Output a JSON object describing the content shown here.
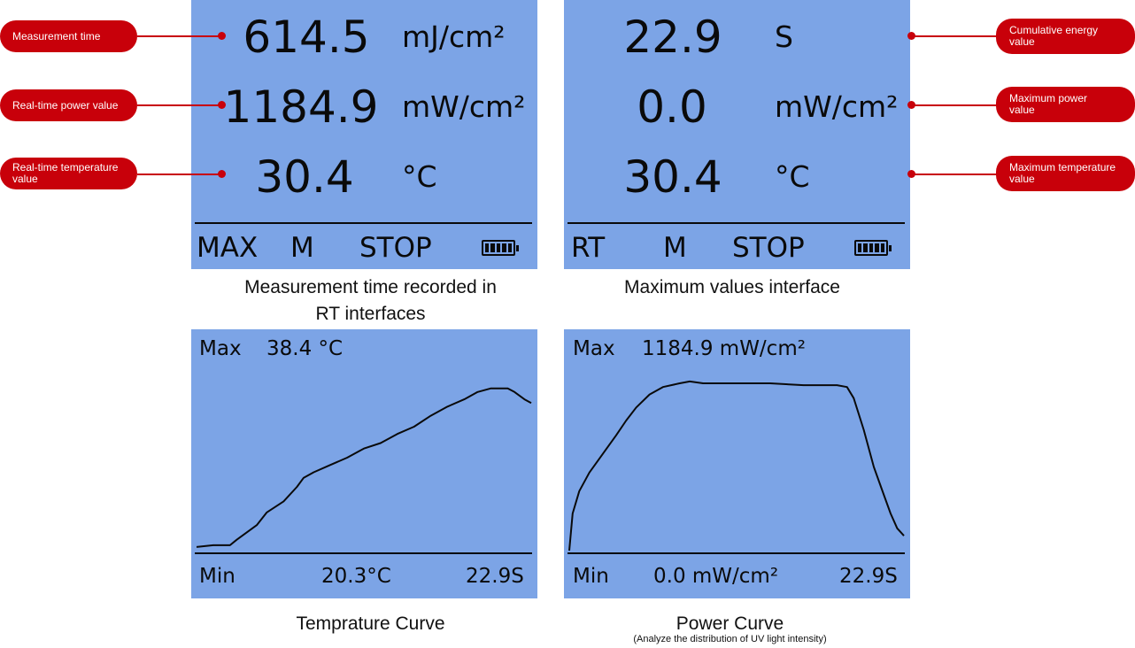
{
  "colors": {
    "screen": "#7ca4e6",
    "ink": "#0a0a0a",
    "callout": "#c8000a"
  },
  "rt_screen": {
    "rows": [
      {
        "value": "614.5",
        "unit": "mJ/cm²"
      },
      {
        "value": "1184.9",
        "unit": "mW/cm²"
      },
      {
        "value": "30.4",
        "unit": "°C"
      }
    ],
    "status": [
      "MAX",
      "M",
      "STOP"
    ],
    "battery_icon": "battery-full-icon",
    "caption_line1": "Measurement time recorded in",
    "caption_line2": "RT interfaces"
  },
  "max_screen": {
    "rows": [
      {
        "value": "22.9",
        "unit": "S"
      },
      {
        "value": "0.0",
        "unit": "mW/cm²"
      },
      {
        "value": "30.4",
        "unit": "°C"
      }
    ],
    "status": [
      "RT",
      "M",
      "STOP"
    ],
    "battery_icon": "battery-full-icon",
    "caption": "Maximum values interface"
  },
  "temp_screen": {
    "max_label": "Max",
    "max_value": "38.4 °C",
    "min_label": "Min",
    "min_value": "20.3°C",
    "time": "22.9S",
    "caption": "Temprature Curve",
    "curve": [
      [
        0,
        0.01
      ],
      [
        0.05,
        0.02
      ],
      [
        0.1,
        0.02
      ],
      [
        0.12,
        0.05
      ],
      [
        0.18,
        0.13
      ],
      [
        0.21,
        0.2
      ],
      [
        0.26,
        0.26
      ],
      [
        0.3,
        0.34
      ],
      [
        0.32,
        0.39
      ],
      [
        0.35,
        0.42
      ],
      [
        0.4,
        0.46
      ],
      [
        0.45,
        0.5
      ],
      [
        0.5,
        0.55
      ],
      [
        0.55,
        0.58
      ],
      [
        0.6,
        0.63
      ],
      [
        0.65,
        0.67
      ],
      [
        0.7,
        0.73
      ],
      [
        0.75,
        0.78
      ],
      [
        0.8,
        0.82
      ],
      [
        0.84,
        0.86
      ],
      [
        0.88,
        0.88
      ],
      [
        0.93,
        0.88
      ],
      [
        0.95,
        0.86
      ],
      [
        0.98,
        0.82
      ],
      [
        1.0,
        0.8
      ]
    ]
  },
  "power_screen": {
    "max_label": "Max",
    "max_value": "1184.9 mW/cm²",
    "min_label": "Min",
    "min_value": "0.0 mW/cm²",
    "time": "22.9S",
    "caption": "Power Curve",
    "subcaption": "(Analyze the distribution of UV light intensity)",
    "curve": [
      [
        0,
        0
      ],
      [
        0.01,
        0.2
      ],
      [
        0.03,
        0.32
      ],
      [
        0.06,
        0.42
      ],
      [
        0.1,
        0.52
      ],
      [
        0.14,
        0.62
      ],
      [
        0.17,
        0.7
      ],
      [
        0.2,
        0.77
      ],
      [
        0.24,
        0.84
      ],
      [
        0.28,
        0.88
      ],
      [
        0.33,
        0.9
      ],
      [
        0.36,
        0.91
      ],
      [
        0.4,
        0.9
      ],
      [
        0.5,
        0.9
      ],
      [
        0.6,
        0.9
      ],
      [
        0.7,
        0.89
      ],
      [
        0.8,
        0.89
      ],
      [
        0.83,
        0.88
      ],
      [
        0.85,
        0.82
      ],
      [
        0.88,
        0.65
      ],
      [
        0.91,
        0.45
      ],
      [
        0.94,
        0.3
      ],
      [
        0.96,
        0.2
      ],
      [
        0.98,
        0.12
      ],
      [
        1.0,
        0.08
      ]
    ]
  },
  "callouts": {
    "measurement_time": "Measurement time",
    "realtime_power": "Real-time power value",
    "realtime_temp_1": "Real-time temperature",
    "realtime_temp_2": "value",
    "cumulative_1": "Cumulative energy",
    "cumulative_2": "value",
    "max_power_1": "Maximum power",
    "max_power_2": "value",
    "max_temp_1": "Maximum temperature",
    "max_temp_2": "value"
  }
}
